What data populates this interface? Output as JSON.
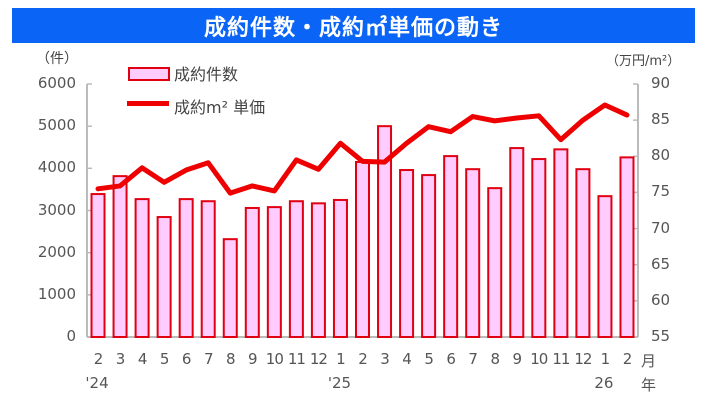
{
  "title": "成約件数・成約㎡単価の動き",
  "left_unit": "（件）",
  "right_unit": "（万円/m²）",
  "x_month_suffix": "月",
  "x_year_suffix": "年",
  "legend": {
    "bars": "成約件数",
    "line": "成約m² 単価"
  },
  "colors": {
    "banner": "#0A64F5",
    "bar_fill": "#FFCCFF",
    "bar_edge": "#E00010",
    "line": "#EE0000",
    "axis": "#BBBBBB"
  },
  "chart_data": {
    "type": "bar+line",
    "title": "成約件数・成約㎡単価の動き",
    "categories": [
      "2",
      "3",
      "4",
      "5",
      "6",
      "7",
      "8",
      "9",
      "10",
      "11",
      "12",
      "1",
      "2",
      "3",
      "4",
      "5",
      "6",
      "7",
      "8",
      "9",
      "10",
      "11",
      "12",
      "1",
      "2"
    ],
    "year_labels": [
      {
        "index": 0,
        "label": "'24"
      },
      {
        "index": 11,
        "label": "'25"
      },
      {
        "index": 23,
        "label": "26"
      }
    ],
    "series": [
      {
        "name": "成約件数",
        "type": "bar",
        "axis": "left",
        "values": [
          3390,
          3815,
          3270,
          2845,
          3270,
          3220,
          2320,
          3060,
          3080,
          3220,
          3170,
          3250,
          4150,
          5000,
          3960,
          3840,
          4290,
          3980,
          3530,
          4480,
          4220,
          4450,
          3980,
          3340,
          4260
        ]
      },
      {
        "name": "成約m² 単価",
        "type": "line",
        "axis": "right",
        "values": [
          75.5,
          75.9,
          78.4,
          76.4,
          78.1,
          79.1,
          74.9,
          75.9,
          75.2,
          79.5,
          78.2,
          81.8,
          79.3,
          79.2,
          81.8,
          84.1,
          83.4,
          85.5,
          84.9,
          85.3,
          85.6,
          82.3,
          85.0,
          87.1,
          85.7
        ]
      }
    ],
    "left_axis": {
      "label": "（件）",
      "ylim": [
        0,
        6000
      ],
      "ticks": [
        0,
        1000,
        2000,
        3000,
        4000,
        5000,
        6000
      ]
    },
    "right_axis": {
      "label": "（万円/m²）",
      "ylim": [
        55,
        90
      ],
      "ticks": [
        55,
        60,
        65,
        70,
        75,
        80,
        85,
        90
      ]
    },
    "xlabel": "月 / 年",
    "grid": false,
    "legend_position": "top-left inside"
  }
}
